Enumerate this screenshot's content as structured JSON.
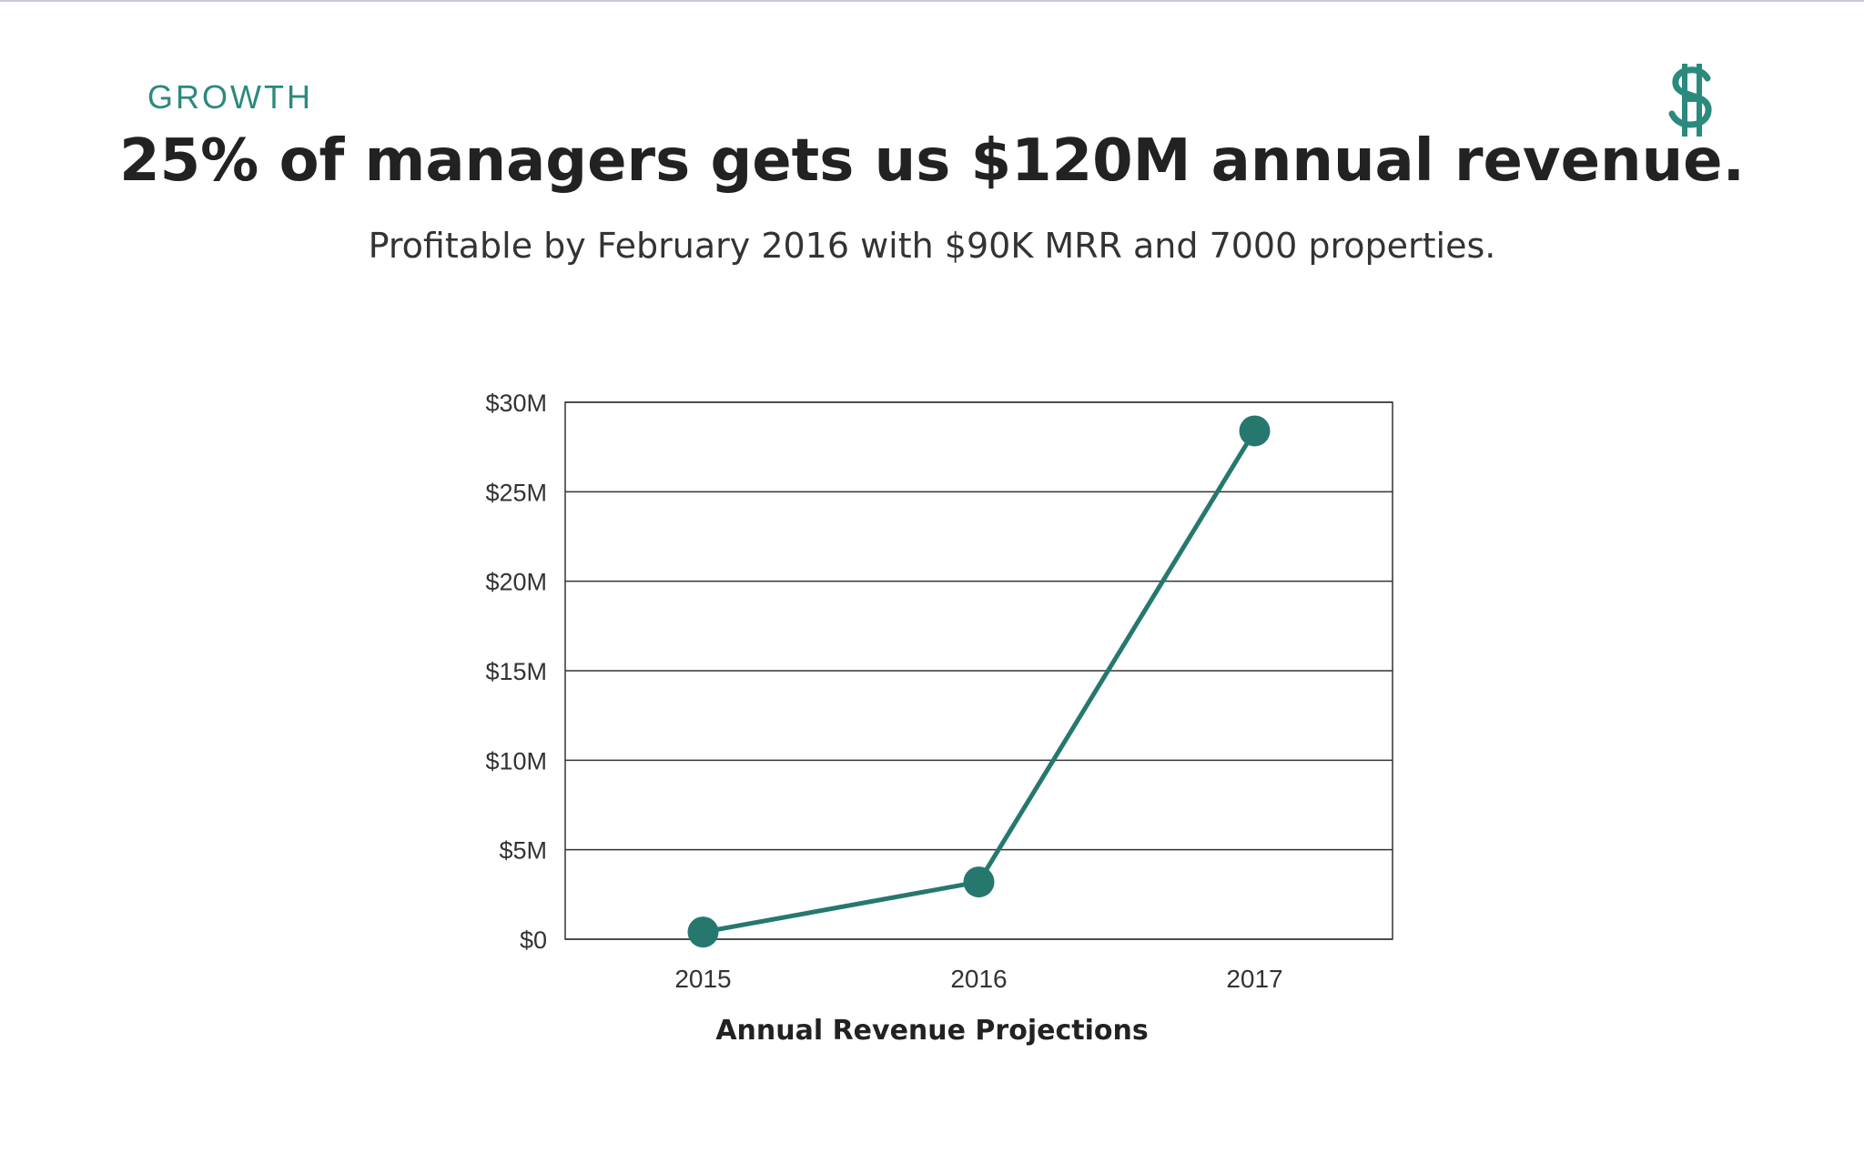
{
  "header": {
    "section_label": "GROWTH",
    "headline": "25% of managers gets us $120M annual revenue.",
    "subhead": "Profitable by February 2016 with $90K MRR and 7000 properties."
  },
  "logo": {
    "icon": "dollar-h-logo-icon",
    "color": "#2a8a7e"
  },
  "chart_data": {
    "type": "line",
    "title": "",
    "xlabel": "Annual Revenue Projections",
    "ylabel": "",
    "categories": [
      "2015",
      "2016",
      "2017"
    ],
    "series": [
      {
        "values": [
          0.4,
          3.2,
          28.4
        ],
        "color": "#26786f"
      }
    ],
    "ylim": [
      0,
      30
    ],
    "yticks": [
      0,
      5,
      10,
      15,
      20,
      25,
      30
    ],
    "ytick_labels": [
      "$0",
      "$5M",
      "$10M",
      "$15M",
      "$20M",
      "$25M",
      "$30M"
    ],
    "grid": true,
    "legend": "none"
  }
}
